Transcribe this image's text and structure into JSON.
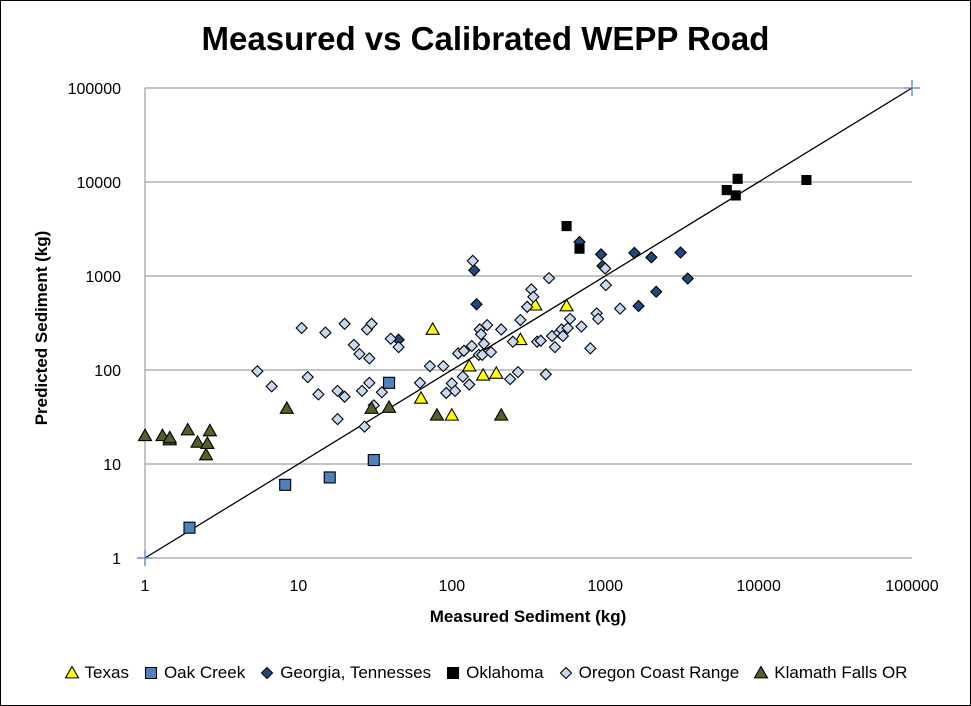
{
  "chart_data": {
    "type": "scatter",
    "title": "Measured vs Calibrated WEPP Road",
    "xlabel": "Measured Sediment (kg)",
    "ylabel": "Predicted Sediment (kg)",
    "xscale": "log",
    "yscale": "log",
    "xlim": [
      1,
      100000
    ],
    "ylim": [
      1,
      100000
    ],
    "xticks": [
      1,
      10,
      100,
      1000,
      10000,
      100000
    ],
    "yticks": [
      1,
      10,
      100,
      1000,
      10000,
      100000
    ],
    "xtick_labels": [
      "1",
      "10",
      "100",
      "1000",
      "10000",
      "100000"
    ],
    "ytick_labels": [
      "1",
      "10",
      "100",
      "1000",
      "10000",
      "100000"
    ],
    "grid": "horizontal",
    "legend_position": "bottom",
    "reference_line": {
      "from": [
        1,
        1
      ],
      "to": [
        100000,
        100000
      ],
      "color": "#000000"
    },
    "series": [
      {
        "name": "Texas",
        "marker": "triangle",
        "fill": "#ffff00",
        "points": [
          [
            75,
            270
          ],
          [
            130,
            110
          ],
          [
            63,
            50
          ],
          [
            100,
            33
          ],
          [
            160,
            88
          ],
          [
            195,
            92
          ],
          [
            280,
            210
          ],
          [
            350,
            490
          ],
          [
            560,
            480
          ]
        ]
      },
      {
        "name": "Oak Creek",
        "marker": "square",
        "fill": "#4f81bd",
        "points": [
          [
            1.95,
            2.1
          ],
          [
            8.2,
            6
          ],
          [
            16,
            7.2
          ],
          [
            31,
            11
          ],
          [
            39,
            73
          ]
        ]
      },
      {
        "name": "Georgia, Tennesses",
        "marker": "diamond",
        "fill": "#1f497d",
        "points": [
          [
            140,
            1150
          ],
          [
            145,
            500
          ],
          [
            680,
            2300
          ],
          [
            940,
            1700
          ],
          [
            960,
            1280
          ],
          [
            1550,
            1760
          ],
          [
            1650,
            480
          ],
          [
            2000,
            1580
          ],
          [
            2150,
            680
          ],
          [
            3100,
            1780
          ],
          [
            3450,
            940
          ],
          [
            45,
            210
          ]
        ]
      },
      {
        "name": "Oklahoma",
        "marker": "square",
        "fill": "#000000",
        "points": [
          [
            560,
            3400
          ],
          [
            680,
            1950
          ],
          [
            6200,
            8200
          ],
          [
            7100,
            7200
          ],
          [
            7300,
            10800
          ],
          [
            20500,
            10500
          ]
        ]
      },
      {
        "name": "Oregon Coast Range",
        "marker": "diamond",
        "fill": "#c6d9f1",
        "points": [
          [
            5.4,
            97
          ],
          [
            6.7,
            67
          ],
          [
            10.5,
            280
          ],
          [
            11.5,
            84
          ],
          [
            13.5,
            55
          ],
          [
            15,
            250
          ],
          [
            18,
            30
          ],
          [
            18,
            60
          ],
          [
            20,
            310
          ],
          [
            20,
            52
          ],
          [
            23,
            185
          ],
          [
            25,
            148
          ],
          [
            26,
            60
          ],
          [
            27,
            25
          ],
          [
            28,
            270
          ],
          [
            29,
            73
          ],
          [
            30,
            310
          ],
          [
            29,
            133
          ],
          [
            31,
            42
          ],
          [
            35,
            58
          ],
          [
            40,
            215
          ],
          [
            45,
            175
          ],
          [
            62,
            73
          ],
          [
            72,
            110
          ],
          [
            88,
            110
          ],
          [
            92,
            57
          ],
          [
            100,
            72
          ],
          [
            105,
            60
          ],
          [
            110,
            150
          ],
          [
            118,
            85
          ],
          [
            120,
            160
          ],
          [
            130,
            70
          ],
          [
            135,
            180
          ],
          [
            137,
            1450
          ],
          [
            150,
            145
          ],
          [
            152,
            270
          ],
          [
            155,
            240
          ],
          [
            158,
            145
          ],
          [
            162,
            190
          ],
          [
            170,
            300
          ],
          [
            180,
            155
          ],
          [
            210,
            270
          ],
          [
            240,
            80
          ],
          [
            250,
            200
          ],
          [
            270,
            95
          ],
          [
            280,
            340
          ],
          [
            310,
            470
          ],
          [
            330,
            720
          ],
          [
            340,
            600
          ],
          [
            360,
            200
          ],
          [
            380,
            205
          ],
          [
            410,
            90
          ],
          [
            430,
            950
          ],
          [
            450,
            230
          ],
          [
            470,
            175
          ],
          [
            500,
            250
          ],
          [
            520,
            270
          ],
          [
            530,
            230
          ],
          [
            570,
            280
          ],
          [
            590,
            350
          ],
          [
            700,
            290
          ],
          [
            800,
            170
          ],
          [
            880,
            400
          ],
          [
            900,
            350
          ],
          [
            1000,
            1200
          ],
          [
            1010,
            800
          ],
          [
            1250,
            450
          ]
        ]
      },
      {
        "name": "Klamath Falls OR",
        "marker": "triangle",
        "fill": "#4f6228",
        "points": [
          [
            1.0,
            20
          ],
          [
            1.3,
            20
          ],
          [
            1.45,
            18
          ],
          [
            1.45,
            19
          ],
          [
            1.9,
            23
          ],
          [
            2.2,
            17
          ],
          [
            2.5,
            12.5
          ],
          [
            2.55,
            16.5
          ],
          [
            2.65,
            22.5
          ],
          [
            8.4,
            39
          ],
          [
            30,
            39
          ],
          [
            39,
            40
          ],
          [
            80,
            33
          ],
          [
            210,
            33
          ]
        ]
      }
    ]
  }
}
